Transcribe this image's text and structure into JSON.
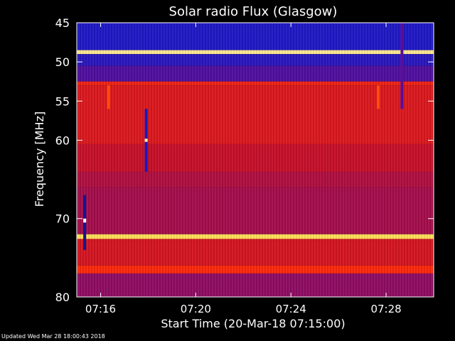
{
  "chart_data": {
    "type": "heatmap",
    "title": "Solar radio Flux (Glasgow)",
    "xlabel": "Start Time (20-Mar-18 07:15:00)",
    "ylabel": "Frequency [MHz]",
    "x_range": [
      "07:15:00",
      "07:30:00"
    ],
    "ylim": [
      45,
      80
    ],
    "y_inverted": true,
    "x_ticks": [
      "07:16",
      "07:20",
      "07:24",
      "07:28"
    ],
    "y_ticks": [
      45,
      50,
      55,
      60,
      70,
      80
    ],
    "colormap": [
      "#0a0a3a",
      "#1a1acc",
      "#6a0a8a",
      "#c8102a",
      "#ff2a0a",
      "#ffd21a",
      "#ffffff"
    ],
    "bands": [
      {
        "from": 45.0,
        "to": 48.5,
        "level": 0.18
      },
      {
        "from": 48.5,
        "to": 49.0,
        "level": 0.92
      },
      {
        "from": 49.0,
        "to": 50.5,
        "level": 0.2
      },
      {
        "from": 50.5,
        "to": 52.5,
        "level": 0.28
      },
      {
        "from": 52.5,
        "to": 53.0,
        "level": 0.62
      },
      {
        "from": 53.0,
        "to": 60.5,
        "level": 0.56
      },
      {
        "from": 60.5,
        "to": 64.0,
        "level": 0.5
      },
      {
        "from": 64.0,
        "to": 66.0,
        "level": 0.46
      },
      {
        "from": 66.0,
        "to": 72.0,
        "level": 0.44
      },
      {
        "from": 72.0,
        "to": 72.6,
        "level": 0.88
      },
      {
        "from": 72.6,
        "to": 76.0,
        "level": 0.54
      },
      {
        "from": 76.0,
        "to": 77.0,
        "level": 0.66
      },
      {
        "from": 77.0,
        "to": 80.0,
        "level": 0.4
      }
    ],
    "features": [
      {
        "kind": "burst",
        "time": "07:17:55",
        "freq_from": 56.0,
        "freq_to": 64.0,
        "level": 0.15
      },
      {
        "kind": "burst",
        "time": "07:17:55",
        "freq_from": 59.8,
        "freq_to": 60.2,
        "level": 0.95
      },
      {
        "kind": "burst",
        "time": "07:15:20",
        "freq_from": 67.0,
        "freq_to": 74.0,
        "level": 0.1
      },
      {
        "kind": "burst",
        "time": "07:15:20",
        "freq_from": 70.0,
        "freq_to": 70.5,
        "level": 1.0
      },
      {
        "kind": "burst",
        "time": "07:16:20",
        "freq_from": 53.0,
        "freq_to": 56.0,
        "level": 0.7
      },
      {
        "kind": "burst",
        "time": "07:27:40",
        "freq_from": 53.0,
        "freq_to": 56.0,
        "level": 0.7
      },
      {
        "kind": "burst",
        "time": "07:28:40",
        "freq_from": 45.0,
        "freq_to": 56.0,
        "level": 0.3
      }
    ]
  },
  "footer": {
    "updated": "Updated Wed Mar 28 18:00:43 2018"
  }
}
